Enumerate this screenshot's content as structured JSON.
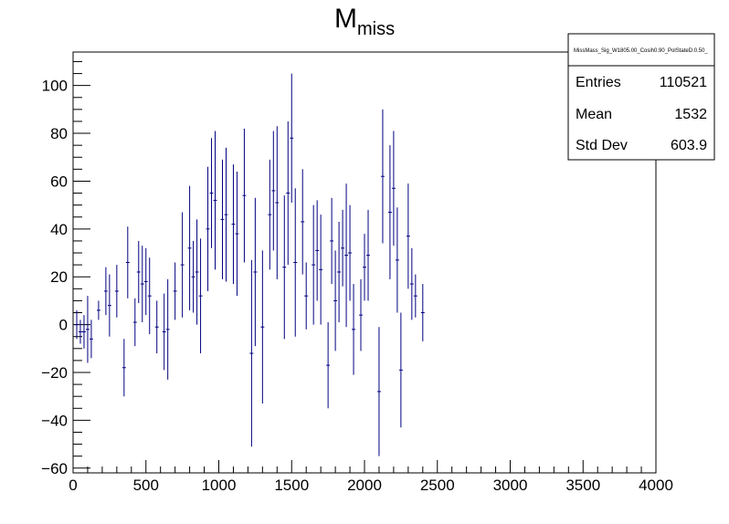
{
  "chart_data": {
    "type": "scatter",
    "title": {
      "main": "M",
      "subscript": "miss"
    },
    "xlabel": "",
    "ylabel": "",
    "xlim": [
      0,
      4000
    ],
    "ylim": [
      -62,
      114
    ],
    "x_ticks": [
      0,
      500,
      1000,
      1500,
      2000,
      2500,
      3000,
      3500,
      4000
    ],
    "y_ticks": [
      -60,
      -40,
      -20,
      0,
      20,
      40,
      60,
      80,
      100
    ],
    "tick_labels_x": [
      "0",
      "500",
      "1000",
      "1500",
      "2000",
      "2500",
      "3000",
      "3500",
      "4000"
    ],
    "tick_labels_y": [
      "−60",
      "−40",
      "−20",
      "0",
      "20",
      "40",
      "60",
      "80",
      "100"
    ],
    "grid": false,
    "legend": "none",
    "series_color": "#000080",
    "bin_width": 25,
    "points": [
      {
        "x": 25,
        "y": 0,
        "err": 6
      },
      {
        "x": 50,
        "y": -3,
        "err": 5
      },
      {
        "x": 75,
        "y": -3,
        "err": 7
      },
      {
        "x": 100,
        "y": -2,
        "err": 14
      },
      {
        "x": 125,
        "y": -6,
        "err": 8
      },
      {
        "x": 175,
        "y": 6,
        "err": 4
      },
      {
        "x": 225,
        "y": 14,
        "err": 10
      },
      {
        "x": 250,
        "y": 8,
        "err": 13
      },
      {
        "x": 300,
        "y": 14,
        "err": 11
      },
      {
        "x": 350,
        "y": -18,
        "err": 12
      },
      {
        "x": 375,
        "y": 26,
        "err": 15
      },
      {
        "x": 425,
        "y": 1,
        "err": 10
      },
      {
        "x": 450,
        "y": 22,
        "err": 13
      },
      {
        "x": 475,
        "y": 17,
        "err": 16
      },
      {
        "x": 500,
        "y": 18,
        "err": 14
      },
      {
        "x": 525,
        "y": 12,
        "err": 16
      },
      {
        "x": 575,
        "y": -1,
        "err": 11
      },
      {
        "x": 625,
        "y": -3,
        "err": 16
      },
      {
        "x": 650,
        "y": -2,
        "err": 21
      },
      {
        "x": 700,
        "y": 14,
        "err": 12
      },
      {
        "x": 750,
        "y": 25,
        "err": 22
      },
      {
        "x": 800,
        "y": 32,
        "err": 26
      },
      {
        "x": 825,
        "y": 20,
        "err": 15
      },
      {
        "x": 850,
        "y": 22,
        "err": 22
      },
      {
        "x": 875,
        "y": 12,
        "err": 24
      },
      {
        "x": 925,
        "y": 40,
        "err": 26
      },
      {
        "x": 950,
        "y": 55,
        "err": 23
      },
      {
        "x": 975,
        "y": 52,
        "err": 29
      },
      {
        "x": 1025,
        "y": 44,
        "err": 25
      },
      {
        "x": 1050,
        "y": 46,
        "err": 28
      },
      {
        "x": 1100,
        "y": 42,
        "err": 25
      },
      {
        "x": 1125,
        "y": 38,
        "err": 26
      },
      {
        "x": 1175,
        "y": 54,
        "err": 28
      },
      {
        "x": 1225,
        "y": -12,
        "err": 39
      },
      {
        "x": 1250,
        "y": 22,
        "err": 31
      },
      {
        "x": 1300,
        "y": -1,
        "err": 32
      },
      {
        "x": 1350,
        "y": 46,
        "err": 23
      },
      {
        "x": 1375,
        "y": 56,
        "err": 25
      },
      {
        "x": 1400,
        "y": 51,
        "err": 32
      },
      {
        "x": 1450,
        "y": 24,
        "err": 30
      },
      {
        "x": 1475,
        "y": 55,
        "err": 30
      },
      {
        "x": 1500,
        "y": 78,
        "err": 27
      },
      {
        "x": 1525,
        "y": 26,
        "err": 31
      },
      {
        "x": 1575,
        "y": 43,
        "err": 22
      },
      {
        "x": 1600,
        "y": 12,
        "err": 14
      },
      {
        "x": 1650,
        "y": 25,
        "err": 25
      },
      {
        "x": 1675,
        "y": 31,
        "err": 21
      },
      {
        "x": 1700,
        "y": 23,
        "err": 23
      },
      {
        "x": 1750,
        "y": -17,
        "err": 18
      },
      {
        "x": 1775,
        "y": 35,
        "err": 18
      },
      {
        "x": 1800,
        "y": 10,
        "err": 21
      },
      {
        "x": 1825,
        "y": 22,
        "err": 21
      },
      {
        "x": 1850,
        "y": 32,
        "err": 16
      },
      {
        "x": 1875,
        "y": 29,
        "err": 30
      },
      {
        "x": 1900,
        "y": 30,
        "err": 20
      },
      {
        "x": 1925,
        "y": -2,
        "err": 19
      },
      {
        "x": 1975,
        "y": 4,
        "err": 15
      },
      {
        "x": 2000,
        "y": 24,
        "err": 14
      },
      {
        "x": 2025,
        "y": 29,
        "err": 19
      },
      {
        "x": 2100,
        "y": -28,
        "err": 27
      },
      {
        "x": 2125,
        "y": 62,
        "err": 28
      },
      {
        "x": 2175,
        "y": 47,
        "err": 28
      },
      {
        "x": 2200,
        "y": 57,
        "err": 24
      },
      {
        "x": 2225,
        "y": 27,
        "err": 22
      },
      {
        "x": 2250,
        "y": -19,
        "err": 24
      },
      {
        "x": 2300,
        "y": 37,
        "err": 22
      },
      {
        "x": 2325,
        "y": 17,
        "err": 15
      },
      {
        "x": 2350,
        "y": 12,
        "err": 9
      },
      {
        "x": 2400,
        "y": 5,
        "err": 12
      }
    ],
    "stats_box": {
      "name": "MissMass_Sig_W1805.00_Cosih0.90_PolStateD:0.50_",
      "entries_label": "Entries",
      "entries_value": "110521",
      "mean_label": "Mean",
      "mean_value": "1532",
      "stddev_label": "Std Dev",
      "stddev_value": "603.9"
    }
  }
}
